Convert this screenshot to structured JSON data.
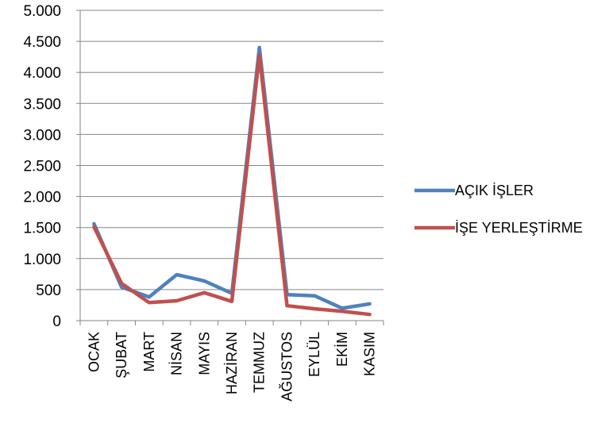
{
  "chart_data": {
    "type": "line",
    "categories": [
      "OCAK",
      "ŞUBAT",
      "MART",
      "NİSAN",
      "MAYIS",
      "HAZİRAN",
      "TEMMUZ",
      "AĞUSTOS",
      "EYLÜL",
      "EKİM",
      "KASIM"
    ],
    "series": [
      {
        "name": "AÇIK İŞLER",
        "color": "#4F81BD",
        "values": [
          1560,
          540,
          380,
          740,
          640,
          440,
          4400,
          420,
          400,
          200,
          270
        ]
      },
      {
        "name": "İŞE YERLEŞTİRME",
        "color": "#C0504D",
        "values": [
          1510,
          600,
          290,
          320,
          450,
          310,
          4280,
          240,
          190,
          150,
          100
        ]
      }
    ],
    "ylim": [
      0,
      5000
    ],
    "yticks": [
      0,
      500,
      1000,
      1500,
      2000,
      2500,
      3000,
      3500,
      4000,
      4500,
      5000
    ],
    "ytick_labels": [
      "0",
      "500",
      "1.000",
      "1.500",
      "2.000",
      "2.500",
      "3.000",
      "3.500",
      "4.000",
      "4.500",
      "5.000"
    ],
    "grid": true,
    "legend_position": "right",
    "title": "",
    "xlabel": "",
    "ylabel": ""
  }
}
